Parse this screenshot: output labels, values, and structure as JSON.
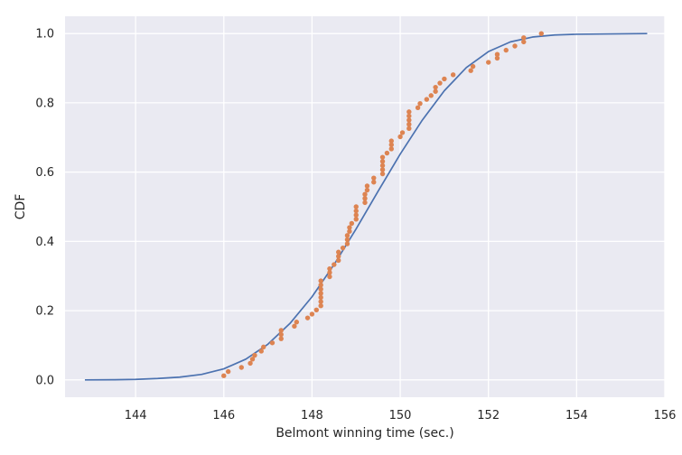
{
  "chart_data": {
    "type": "scatter",
    "xlabel": "Belmont winning time (sec.)",
    "ylabel": "CDF",
    "xlim": [
      142.4,
      156.0
    ],
    "ylim": [
      -0.05,
      1.05
    ],
    "xticks": [
      144,
      146,
      148,
      150,
      152,
      154,
      156
    ],
    "yticks": [
      0.0,
      0.2,
      0.4,
      0.6,
      0.8,
      1.0
    ],
    "x_tick_labels": [
      "144",
      "146",
      "148",
      "150",
      "152",
      "154",
      "156"
    ],
    "y_tick_labels": [
      "0.0",
      "0.2",
      "0.4",
      "0.6",
      "0.8",
      "1.0"
    ],
    "grid": true,
    "background_color": "#eaeaf2",
    "series": [
      {
        "kind": "line",
        "color": "#4c72b0",
        "x": [
          142.85,
          143.5,
          144.0,
          144.5,
          145.0,
          145.5,
          146.0,
          146.5,
          147.0,
          147.5,
          148.0,
          148.5,
          149.0,
          149.5,
          150.0,
          150.5,
          151.0,
          151.5,
          152.0,
          152.5,
          153.0,
          153.5,
          154.0,
          155.6
        ],
        "y": [
          0.0,
          0.0005,
          0.0015,
          0.004,
          0.008,
          0.016,
          0.032,
          0.06,
          0.103,
          0.163,
          0.24,
          0.333,
          0.436,
          0.545,
          0.652,
          0.75,
          0.835,
          0.902,
          0.948,
          0.976,
          0.99,
          0.996,
          0.998,
          1.0
        ]
      },
      {
        "kind": "scatter",
        "color": "#dd8452",
        "x": [
          146.0,
          146.1,
          146.4,
          146.6,
          146.65,
          146.7,
          146.85,
          146.9,
          147.1,
          147.3,
          147.3,
          147.3,
          147.6,
          147.65,
          147.9,
          148.0,
          148.1,
          148.2,
          148.2,
          148.2,
          148.2,
          148.2,
          148.2,
          148.2,
          148.4,
          148.4,
          148.4,
          148.5,
          148.6,
          148.6,
          148.6,
          148.7,
          148.8,
          148.8,
          148.8,
          148.85,
          148.85,
          148.9,
          149.0,
          149.0,
          149.0,
          149.0,
          149.2,
          149.2,
          149.2,
          149.25,
          149.25,
          149.4,
          149.4,
          149.6,
          149.6,
          149.6,
          149.6,
          149.6,
          149.7,
          149.8,
          149.8,
          149.8,
          150.0,
          150.05,
          150.2,
          150.2,
          150.2,
          150.2,
          150.2,
          150.4,
          150.45,
          150.6,
          150.7,
          150.8,
          150.8,
          150.9,
          151.0,
          151.2,
          151.6,
          151.65,
          152.0,
          152.2,
          152.2,
          152.4,
          152.6,
          152.8,
          152.8,
          153.2
        ],
        "y": [
          0.012,
          0.024,
          0.036,
          0.048,
          0.06,
          0.071,
          0.083,
          0.095,
          0.107,
          0.119,
          0.131,
          0.143,
          0.155,
          0.167,
          0.179,
          0.19,
          0.202,
          0.214,
          0.226,
          0.238,
          0.25,
          0.262,
          0.274,
          0.286,
          0.298,
          0.31,
          0.321,
          0.333,
          0.345,
          0.357,
          0.369,
          0.381,
          0.393,
          0.405,
          0.417,
          0.429,
          0.44,
          0.452,
          0.464,
          0.476,
          0.488,
          0.5,
          0.512,
          0.524,
          0.536,
          0.548,
          0.56,
          0.571,
          0.583,
          0.595,
          0.607,
          0.619,
          0.631,
          0.643,
          0.655,
          0.667,
          0.679,
          0.69,
          0.702,
          0.714,
          0.726,
          0.738,
          0.75,
          0.762,
          0.774,
          0.786,
          0.798,
          0.81,
          0.821,
          0.833,
          0.845,
          0.857,
          0.869,
          0.881,
          0.893,
          0.905,
          0.917,
          0.929,
          0.94,
          0.952,
          0.964,
          0.976,
          0.988,
          1.0
        ]
      }
    ]
  }
}
